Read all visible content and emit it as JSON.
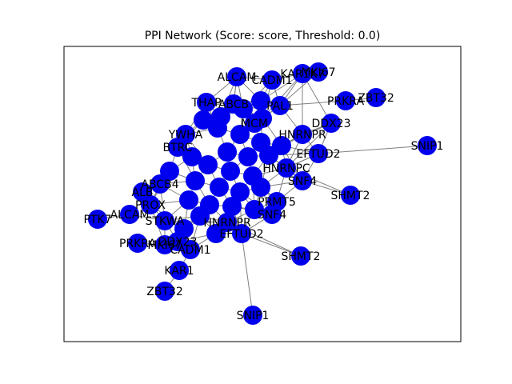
{
  "title": "PPI Network (Score: score, Threshold: 0.0)",
  "node_color": "#0000ee",
  "edge_color": "#808080",
  "nodes": [
    {
      "id": "ALCAM",
      "label": "ALCAM"
    },
    {
      "id": "CADM1",
      "label": "CADM1"
    },
    {
      "id": "KAR1K7",
      "label": "KAR1K7"
    },
    {
      "id": "MKI67",
      "label": "MKI67"
    },
    {
      "id": "PRKRA",
      "label": "PRKRA"
    },
    {
      "id": "ZBT32",
      "label": "ZBT32"
    },
    {
      "id": "THAP",
      "label": "THAP"
    },
    {
      "id": "ABCB",
      "label": "ABCB"
    },
    {
      "id": "PAL1",
      "label": "PAL1"
    },
    {
      "id": "DDX23",
      "label": "DDX23"
    },
    {
      "id": "YWHA",
      "label": "YWHA"
    },
    {
      "id": "MCM",
      "label": "MCM"
    },
    {
      "id": "HNRNPR",
      "label": "HNRNPR"
    },
    {
      "id": "BTRC",
      "label": "BTRC"
    },
    {
      "id": "EFTUD2",
      "label": "EFTUD2"
    },
    {
      "id": "SNIP1",
      "label": "SNIP1"
    },
    {
      "id": "HNRNPC",
      "label": "HNRNPC"
    },
    {
      "id": "SNF4",
      "label": "SNF4"
    },
    {
      "id": "SHMT2",
      "label": "SHMT2"
    },
    {
      "id": "ABCB4",
      "label": "ABCB4"
    },
    {
      "id": "PROX",
      "label": "PROX"
    },
    {
      "id": "ALB",
      "label": "ALB"
    },
    {
      "id": "PRMT5",
      "label": "PRMT5"
    },
    {
      "id": "PTK7",
      "label": "PTK7"
    },
    {
      "id": "ALCAM2",
      "label": "ALCAM"
    },
    {
      "id": "STKWA",
      "label": "STKWA"
    },
    {
      "id": "PRKRA2",
      "label": "PRKRA"
    },
    {
      "id": "MKI67B",
      "label": "MKI67"
    },
    {
      "id": "DDX23B",
      "label": "DDX23"
    },
    {
      "id": "CADM1B",
      "label": "CADM1"
    },
    {
      "id": "HNRNPR2",
      "label": "HNRNPR"
    },
    {
      "id": "EFTUD2B",
      "label": "EFTUD2"
    },
    {
      "id": "SHMT2B",
      "label": "SHMT2"
    },
    {
      "id": "KAR1",
      "label": "KAR1"
    },
    {
      "id": "ZBT32B",
      "label": "ZBT32"
    },
    {
      "id": "SNIP1B",
      "label": "SNIP1"
    },
    {
      "id": "SNF4B",
      "label": "SNF4"
    }
  ]
}
